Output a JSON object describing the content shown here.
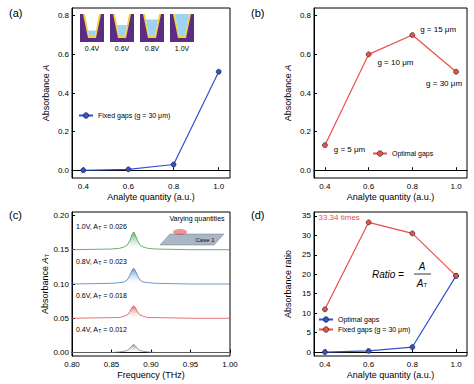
{
  "chart_data": [
    {
      "type": "line",
      "title": "(a)",
      "x_label": "Analyte quantity (a.u.)",
      "y_label": "Absorbance A",
      "xlim": [
        0.35,
        1.05
      ],
      "xticks": [
        0.4,
        0.6,
        0.8,
        {
          "value": 1,
          "label": "1.0"
        }
      ],
      "ylim": [
        -0.04,
        0.84
      ],
      "yticks": [
        {
          "value": 0,
          "label": "0.0"
        },
        0.2,
        0.4,
        0.6,
        0.8
      ],
      "grid": false,
      "legend": "lower center",
      "x": [
        0.4,
        0.6,
        0.8,
        1.0
      ],
      "series": [
        {
          "name": "Fixed gaps (g = 30 μm)",
          "color": "#3050d0",
          "marker": "circle",
          "values": [
            0.0,
            0.005,
            0.03,
            0.51
          ]
        }
      ],
      "inset_labels": [
        "0.4V",
        "0.6V",
        "0.8V",
        "1.0V"
      ]
    },
    {
      "type": "line",
      "title": "(b)",
      "x_label": "Analyte quantity (a.u.)",
      "y_label": "Absorbance A",
      "xlim": [
        0.35,
        1.05
      ],
      "xticks": [
        0.4,
        0.6,
        0.8,
        {
          "value": 1,
          "label": "1.0"
        }
      ],
      "ylim": [
        -0.04,
        0.84
      ],
      "yticks": [
        {
          "value": 0,
          "label": "0.0"
        },
        0.2,
        0.4,
        0.6,
        0.8
      ],
      "grid": false,
      "legend": "lower right",
      "x": [
        0.4,
        0.6,
        0.8,
        1.0
      ],
      "series": [
        {
          "name": "Optimal gaps",
          "color": "#e8504a",
          "marker": "circle",
          "values": [
            0.13,
            0.6,
            0.7,
            0.51
          ],
          "point_labels": [
            "g = 5 μm",
            "g = 10 μm",
            "g = 15 μm",
            "g = 30 μm"
          ]
        }
      ]
    },
    {
      "type": "line",
      "title": "(c)",
      "x_label": "Frequency (THz)",
      "y_label": "Absorbance A",
      "y_label_sub": "T",
      "xlim": [
        0.8,
        1.0
      ],
      "xticks": [
        {
          "value": 0.8,
          "label": "0.80"
        },
        0.85,
        {
          "value": 0.9,
          "label": "0.90"
        },
        0.95,
        {
          "value": 1,
          "label": "1.00"
        }
      ],
      "ylim": [
        -0.005,
        0.205
      ],
      "yticks": [
        {
          "value": 0,
          "label": "0.00"
        },
        0.05,
        {
          "value": 0.1,
          "label": "0.10"
        },
        0.15,
        {
          "value": 0.2,
          "label": "0.20"
        }
      ],
      "grid": false,
      "x": [
        0.8,
        0.85,
        0.86,
        0.866,
        0.87,
        0.873,
        0.876,
        0.878,
        0.88,
        0.883,
        0.886,
        0.89,
        0.896,
        0.906,
        0.95,
        1.0
      ],
      "series": [
        {
          "color": "#808080",
          "label": "0.4V, A",
          "label_sub": "T",
          "label_value": " = 0.012",
          "values": [
            0,
            0,
            0.001,
            0.002,
            0.003,
            0.006,
            0.01,
            0.012,
            0.01,
            0.006,
            0.003,
            0.002,
            0.001,
            0,
            0,
            0
          ]
        },
        {
          "color": "#e05050",
          "label": "0.6V, A",
          "label_sub": "T",
          "label_value": " = 0.018",
          "values": [
            0.05,
            0.051,
            0.051,
            0.053,
            0.055,
            0.059,
            0.066,
            0.068,
            0.066,
            0.059,
            0.055,
            0.053,
            0.051,
            0.051,
            0.05,
            0.05
          ]
        },
        {
          "color": "#4a7fc0",
          "label": "0.8V, A",
          "label_sub": "T",
          "label_value": " = 0.023",
          "values": [
            0.1,
            0.101,
            0.102,
            0.103,
            0.106,
            0.112,
            0.12,
            0.123,
            0.12,
            0.112,
            0.106,
            0.103,
            0.102,
            0.101,
            0.1,
            0.1
          ]
        },
        {
          "color": "#3ca050",
          "label": "1.0V, A",
          "label_sub": "T",
          "label_value": " = 0.026",
          "values": [
            0.15,
            0.151,
            0.152,
            0.154,
            0.157,
            0.163,
            0.172,
            0.176,
            0.172,
            0.163,
            0.157,
            0.154,
            0.152,
            0.151,
            0.15,
            0.15
          ]
        }
      ],
      "inset_text": [
        "Varying quantities",
        "Case 1"
      ]
    },
    {
      "type": "line",
      "title": "(d)",
      "x_label": "Analyte quantity (a.u.)",
      "y_label": "Absorbance ratio",
      "xlim": [
        0.35,
        1.05
      ],
      "xticks": [
        0.4,
        0.6,
        0.8,
        {
          "value": 1,
          "label": "1.0"
        }
      ],
      "ylim": [
        -1,
        36
      ],
      "yticks": [
        0,
        5,
        10,
        15,
        20,
        25,
        30,
        35
      ],
      "grid": false,
      "legend": "lower center",
      "x": [
        0.4,
        0.6,
        0.8,
        1.0
      ],
      "series": [
        {
          "name": "Optimal gaps",
          "color": "#3050d0",
          "marker": "circle",
          "values": [
            0.0,
            0.3,
            1.3,
            19.6
          ]
        },
        {
          "name": "Fixed gaps (g = 30 μm)",
          "color": "#e8504a",
          "marker": "circle",
          "values": [
            11.0,
            33.34,
            30.5,
            19.6
          ],
          "point_labels": [
            null,
            "33.34 times",
            null,
            null
          ]
        }
      ],
      "formula": {
        "lhs": "Ratio = ",
        "num": "A",
        "den": "A",
        "den_sub": "T"
      }
    }
  ]
}
